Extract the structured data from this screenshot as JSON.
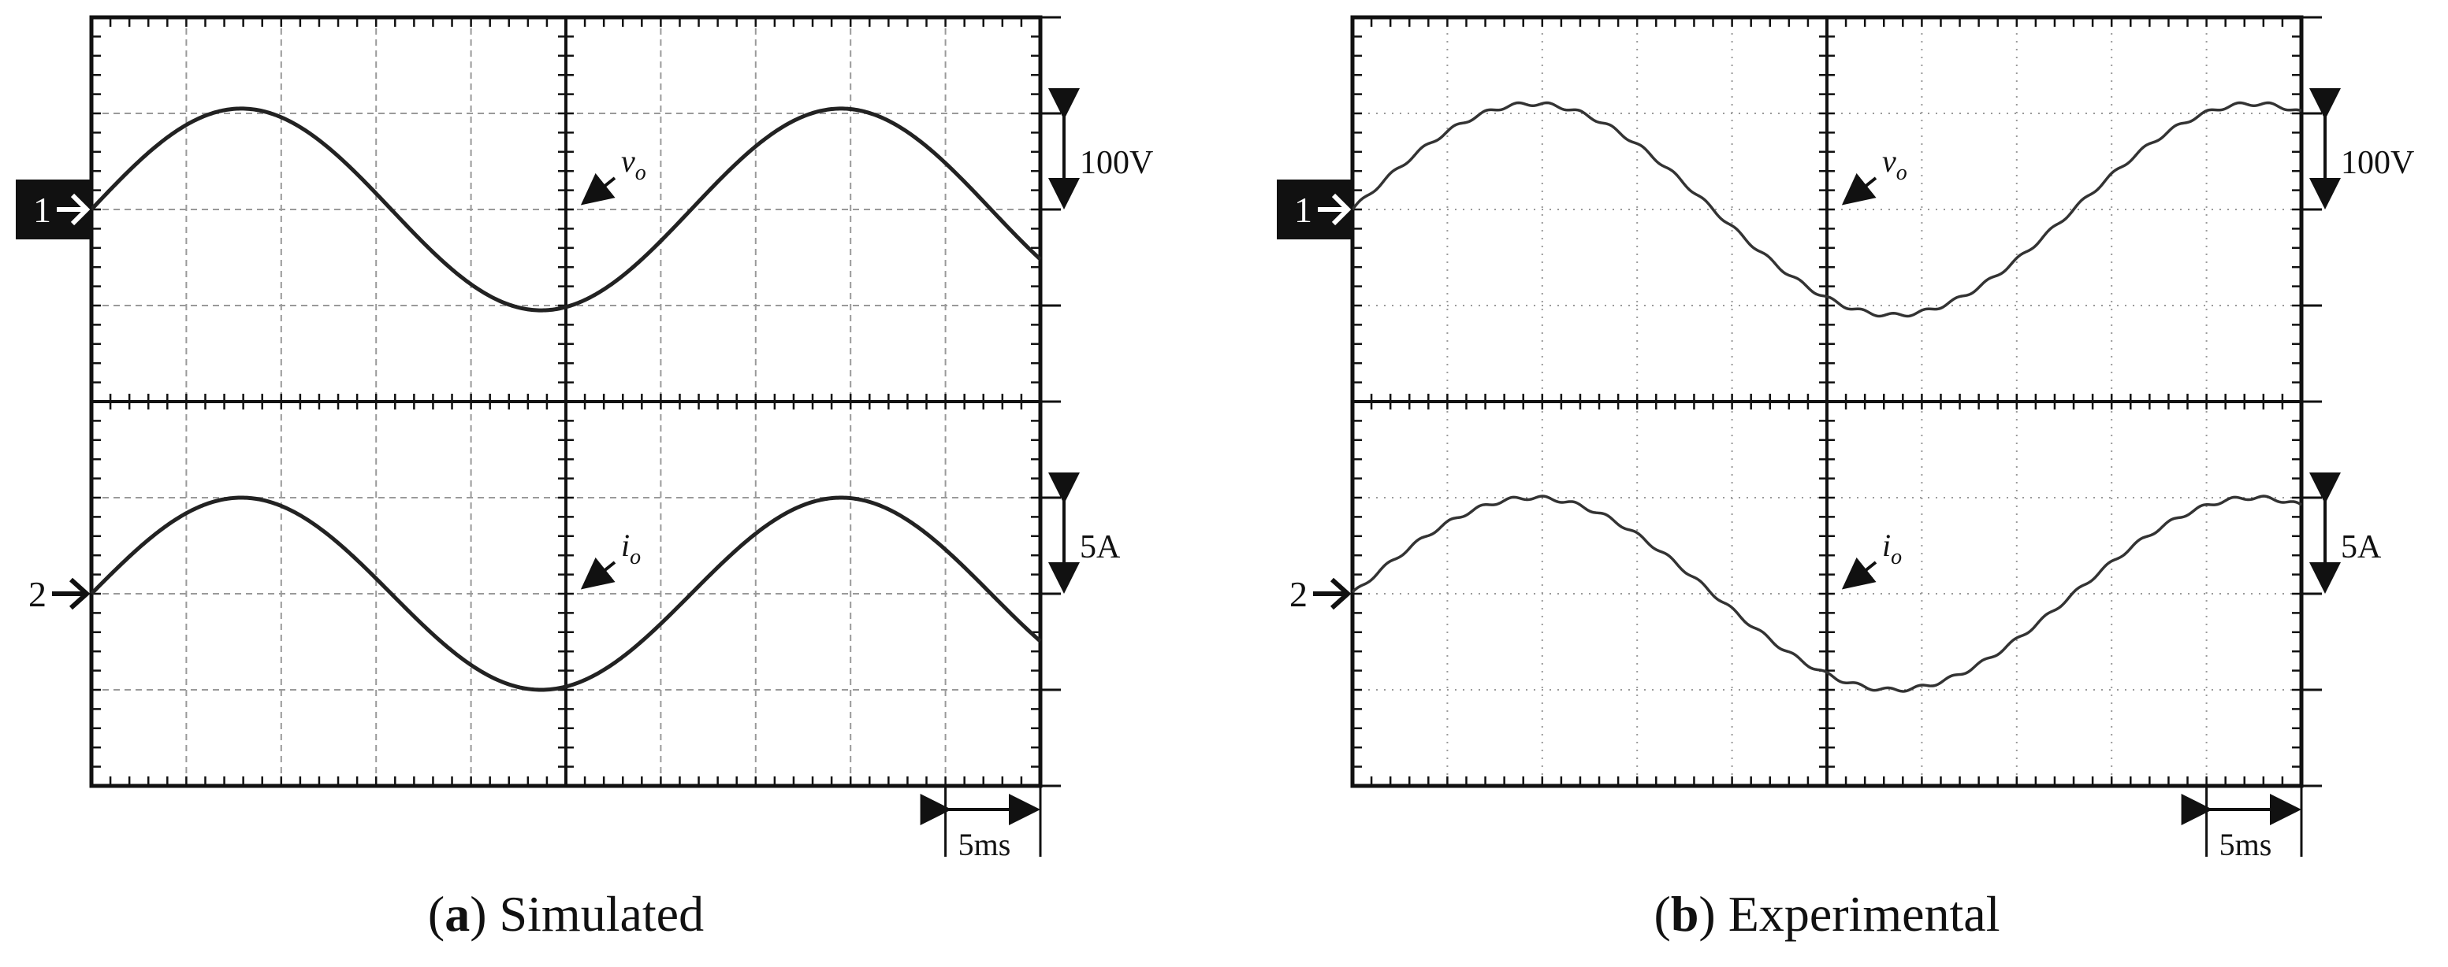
{
  "figure": {
    "panels": [
      {
        "id": "a",
        "letter": "a",
        "caption": "Simulated",
        "grid_color": "#9a9a9a",
        "trace_color": "#222222",
        "frame_color": "#111111"
      },
      {
        "id": "b",
        "letter": "b",
        "caption": "Experimental",
        "grid_color": "#9a9a9a",
        "trace_color": "#333333",
        "frame_color": "#111111"
      }
    ],
    "scale_voltage": "100V",
    "scale_current": "5A",
    "scale_time": "5ms",
    "channel_1_marker": "1",
    "channel_2_marker": "2",
    "label_v": "v",
    "label_i": "i",
    "label_subscript": "o"
  },
  "chart_data": [
    {
      "type": "line",
      "title": "Simulated",
      "x_unit_per_div": "5ms",
      "time_divisions": 10,
      "time_range_ms": [
        0,
        50
      ],
      "grid": true,
      "series": [
        {
          "name": "v_o",
          "channel": 1,
          "scale_per_div": "100V",
          "amplitude_div": 1.05,
          "period_ms": 31.6,
          "phase_offset_div": 0,
          "zero_crossing_ms": 0
        },
        {
          "name": "i_o",
          "channel": 2,
          "scale_per_div": "5A",
          "amplitude_div": 1.0,
          "period_ms": 31.6,
          "phase_offset_div": 0,
          "zero_crossing_ms": 0
        }
      ]
    },
    {
      "type": "line",
      "title": "Experimental",
      "x_unit_per_div": "5ms",
      "time_divisions": 10,
      "time_range_ms": [
        0,
        50
      ],
      "grid": true,
      "series": [
        {
          "name": "v_o",
          "channel": 1,
          "scale_per_div": "100V",
          "amplitude_div": 1.1,
          "period_ms": 38.0,
          "phase_offset_div": 0,
          "zero_crossing_ms": 0
        },
        {
          "name": "i_o",
          "channel": 2,
          "scale_per_div": "5A",
          "amplitude_div": 1.0,
          "period_ms": 38.0,
          "phase_offset_div": 0,
          "zero_crossing_ms": 0
        }
      ]
    }
  ]
}
